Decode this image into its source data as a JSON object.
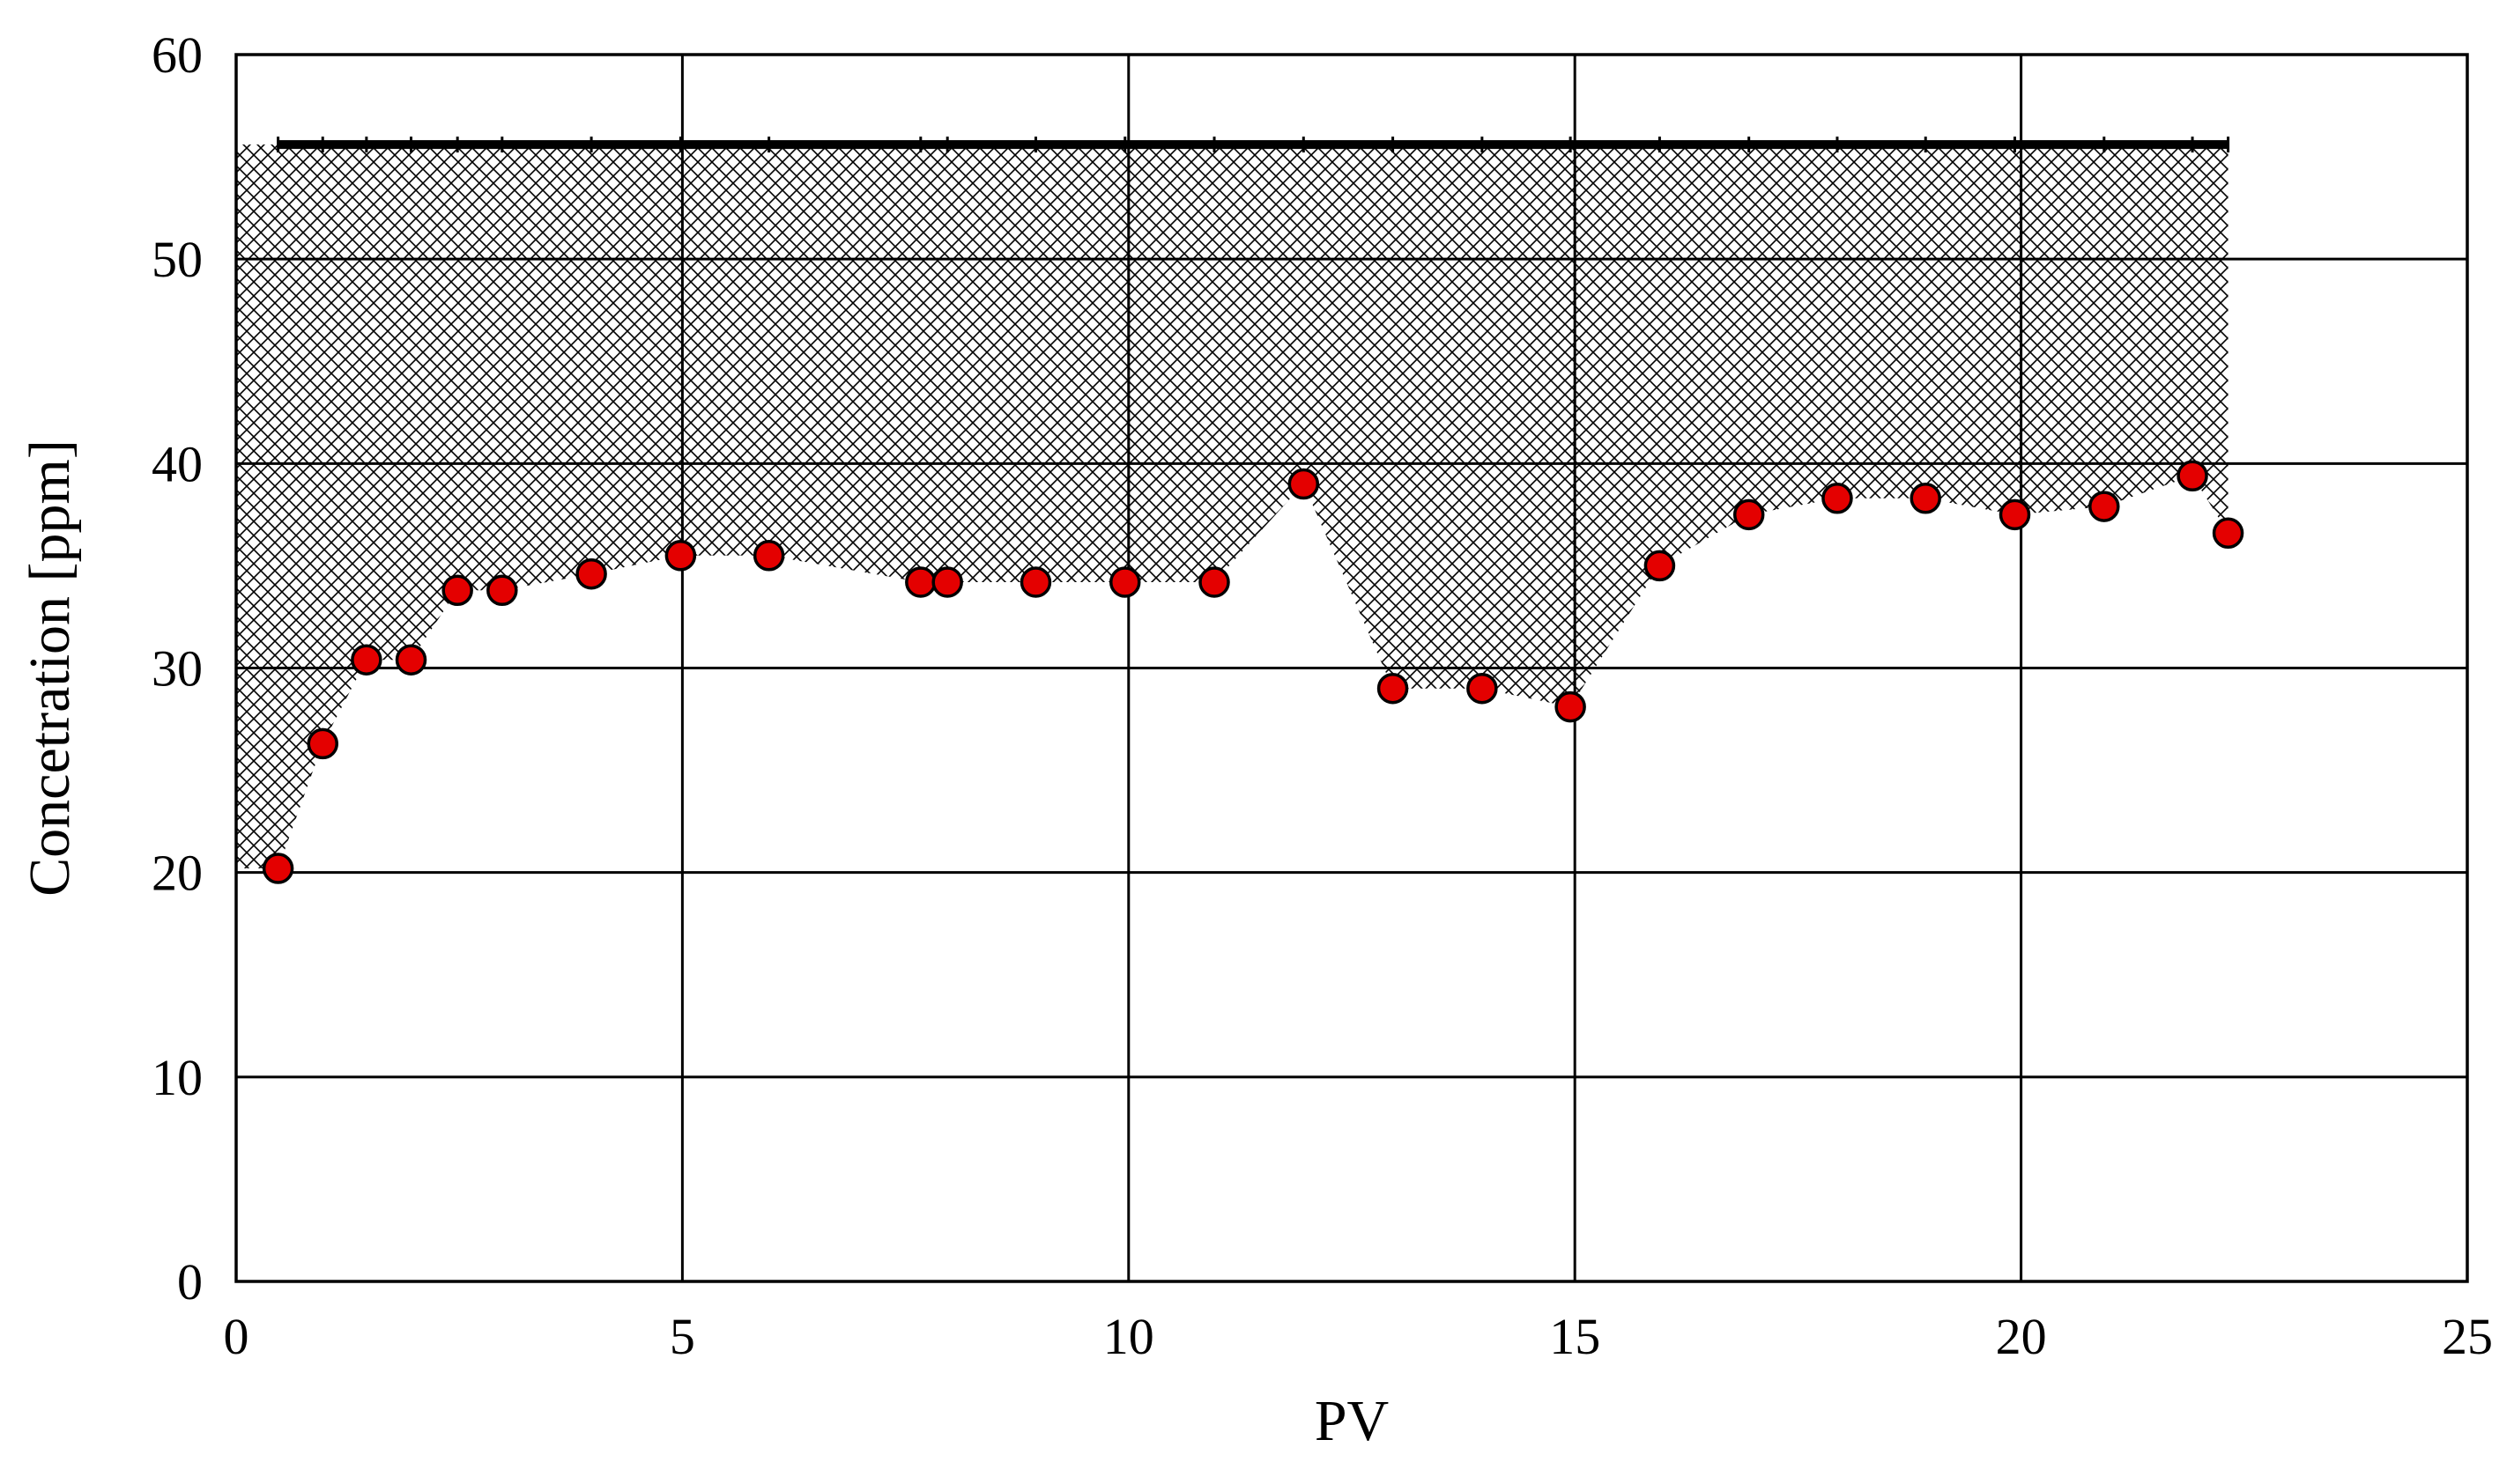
{
  "chart_data": {
    "type": "scatter",
    "title": "",
    "xlabel": "PV",
    "ylabel": "Concetration [ppm]",
    "xlim": [
      0,
      25
    ],
    "ylim": [
      0,
      60
    ],
    "x_ticks": [
      "0",
      "5",
      "10",
      "15",
      "20",
      "25"
    ],
    "y_ticks": [
      "0",
      "10",
      "20",
      "30",
      "40",
      "50",
      "60"
    ],
    "grid": true,
    "legend": "none",
    "series": [
      {
        "color": "#e40000",
        "marker": "circle",
        "x": [
          0.47,
          0.97,
          1.46,
          1.96,
          2.48,
          2.98,
          3.98,
          4.98,
          5.97,
          7.67,
          7.97,
          8.96,
          9.96,
          10.96,
          11.96,
          12.96,
          13.96,
          14.95,
          15.95,
          16.95,
          17.94,
          18.93,
          19.93,
          20.93,
          21.92,
          22.32
        ],
        "y": [
          20.2,
          26.3,
          30.4,
          30.4,
          33.8,
          33.8,
          34.6,
          35.5,
          35.5,
          34.2,
          34.2,
          34.2,
          34.2,
          34.2,
          39.0,
          29.0,
          29.0,
          28.1,
          35.0,
          37.5,
          38.3,
          38.3,
          37.5,
          37.9,
          39.4,
          36.6
        ]
      }
    ],
    "reference_line": {
      "color": "#000000",
      "x": [
        0.47,
        22.32
      ],
      "y": [
        55.6,
        55.6
      ]
    },
    "shaded_region": {
      "pattern": "crosshatch",
      "color": "#000000",
      "between": "reference_line and series"
    }
  }
}
